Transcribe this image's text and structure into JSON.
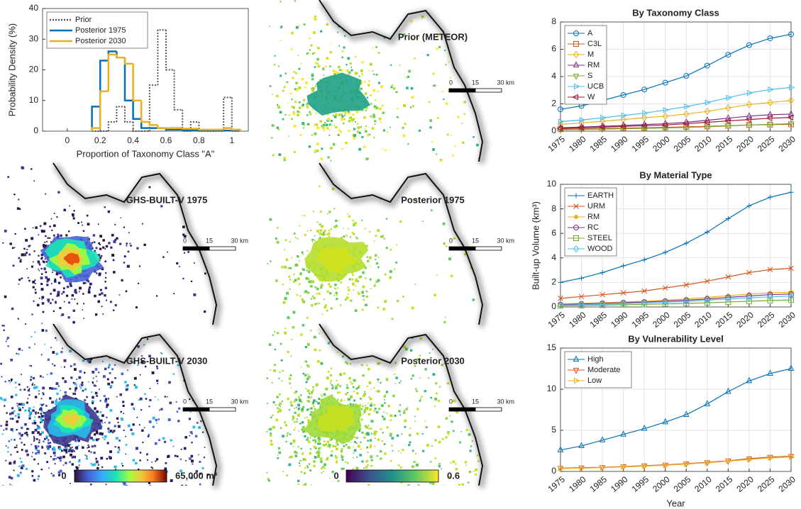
{
  "chart_data": [
    {
      "type": "histogram",
      "xlabel": "Proportion of Taxonomy Class \"A\"",
      "ylabel": "Probability Density (%)",
      "bins": [
        0.15,
        0.2,
        0.25,
        0.3,
        0.35,
        0.4,
        0.45,
        0.5,
        0.55,
        0.6,
        0.65,
        0.7,
        0.75,
        0.8,
        0.85,
        0.9,
        0.95,
        1.0,
        1.05
      ],
      "series": [
        {
          "name": "Prior",
          "color": "#555555",
          "linestyle": "dotted",
          "values": [
            0,
            0,
            3,
            8,
            3,
            0,
            0,
            15,
            33,
            20,
            7,
            0,
            3,
            0,
            0,
            0,
            11,
            0
          ]
        },
        {
          "name": "Posterior 1975",
          "color": "#0072bd",
          "linestyle": "solid",
          "values": [
            8,
            23,
            26,
            24,
            10,
            4,
            1,
            1,
            1,
            0.5,
            0.5,
            0.3,
            0.3,
            0.3,
            0.2,
            0.2,
            0.2,
            0.2
          ]
        },
        {
          "name": "Posterior 2030",
          "color": "#edb120",
          "linestyle": "solid",
          "values": [
            1,
            13,
            25,
            24,
            22,
            10,
            3,
            2,
            1,
            1,
            1,
            0.8,
            0.8,
            0.5,
            0.5,
            0.5,
            1,
            0.5
          ]
        }
      ],
      "xlim": [
        -0.15,
        1.1
      ],
      "xticks": [
        0,
        0.2,
        0.4,
        0.6,
        0.8,
        1
      ],
      "ylim": [
        0,
        40
      ],
      "yticks": [
        0,
        10,
        20,
        30,
        40
      ],
      "grid": false,
      "legend": "northwest"
    },
    {
      "type": "line",
      "title": "By Taxonomy Class",
      "x": [
        1975,
        1980,
        1985,
        1990,
        1995,
        2000,
        2005,
        2010,
        2015,
        2020,
        2025,
        2030
      ],
      "series": [
        {
          "name": "A",
          "color": "#0072bd",
          "marker": "circle",
          "values": [
            1.6,
            1.85,
            2.25,
            2.65,
            3.05,
            3.55,
            4.05,
            4.8,
            5.6,
            6.3,
            6.8,
            7.1
          ]
        },
        {
          "name": "C3L",
          "color": "#d95319",
          "marker": "square",
          "values": [
            0.15,
            0.17,
            0.2,
            0.22,
            0.25,
            0.28,
            0.31,
            0.35,
            0.4,
            0.45,
            0.48,
            0.5
          ]
        },
        {
          "name": "M",
          "color": "#edb120",
          "marker": "diamond",
          "values": [
            0.5,
            0.6,
            0.72,
            0.85,
            0.98,
            1.1,
            1.25,
            1.45,
            1.7,
            1.95,
            2.1,
            2.25
          ]
        },
        {
          "name": "RM",
          "color": "#7e2f8e",
          "marker": "triangle-up",
          "values": [
            0.25,
            0.3,
            0.36,
            0.42,
            0.48,
            0.55,
            0.65,
            0.8,
            0.95,
            1.1,
            1.2,
            1.25
          ]
        },
        {
          "name": "S",
          "color": "#77ac30",
          "marker": "triangle-down",
          "values": [
            0.1,
            0.12,
            0.15,
            0.18,
            0.2,
            0.23,
            0.27,
            0.32,
            0.38,
            0.45,
            0.5,
            0.55
          ]
        },
        {
          "name": "UCB",
          "color": "#4dbeee",
          "marker": "triangle-right",
          "values": [
            0.7,
            0.82,
            0.98,
            1.15,
            1.32,
            1.55,
            1.8,
            2.1,
            2.45,
            2.8,
            3.05,
            3.2
          ]
        },
        {
          "name": "W",
          "color": "#a2142f",
          "marker": "triangle-left",
          "values": [
            0.2,
            0.25,
            0.3,
            0.35,
            0.4,
            0.45,
            0.55,
            0.65,
            0.75,
            0.85,
            0.95,
            1.0
          ]
        }
      ],
      "xlim": [
        1975,
        2030
      ],
      "xticks": [
        1975,
        1980,
        1985,
        1990,
        1995,
        2000,
        2005,
        2010,
        2015,
        2020,
        2025,
        2030
      ],
      "ylim": [
        0,
        8
      ],
      "yticks": [
        0,
        2,
        4,
        6,
        8
      ],
      "grid": true,
      "legend": "northwest"
    },
    {
      "type": "line",
      "title": "By Material Type",
      "ylabel": "Built-up Volume (km³)",
      "x": [
        1975,
        1980,
        1985,
        1990,
        1995,
        2000,
        2005,
        2010,
        2015,
        2020,
        2025,
        2030
      ],
      "series": [
        {
          "name": "EARTH",
          "color": "#0072bd",
          "marker": "plus",
          "values": [
            2.0,
            2.35,
            2.8,
            3.35,
            3.85,
            4.45,
            5.2,
            6.1,
            7.2,
            8.25,
            8.95,
            9.35
          ]
        },
        {
          "name": "URM",
          "color": "#d95319",
          "marker": "cross",
          "values": [
            0.7,
            0.85,
            1.0,
            1.15,
            1.3,
            1.55,
            1.8,
            2.1,
            2.45,
            2.8,
            3.05,
            3.15
          ]
        },
        {
          "name": "RM",
          "color": "#edb120",
          "marker": "dot",
          "values": [
            0.25,
            0.3,
            0.35,
            0.4,
            0.47,
            0.55,
            0.65,
            0.78,
            0.92,
            1.05,
            1.15,
            1.2
          ]
        },
        {
          "name": "RC",
          "color": "#7e2f8e",
          "marker": "circle",
          "values": [
            0.2,
            0.25,
            0.3,
            0.35,
            0.4,
            0.47,
            0.55,
            0.65,
            0.78,
            0.9,
            1.0,
            1.05
          ]
        },
        {
          "name": "STEEL",
          "color": "#77ac30",
          "marker": "square",
          "values": [
            0.1,
            0.12,
            0.15,
            0.18,
            0.21,
            0.25,
            0.29,
            0.34,
            0.4,
            0.47,
            0.52,
            0.57
          ]
        },
        {
          "name": "WOOD",
          "color": "#4dbeee",
          "marker": "diamond",
          "values": [
            0.15,
            0.18,
            0.22,
            0.27,
            0.32,
            0.38,
            0.45,
            0.55,
            0.65,
            0.75,
            0.82,
            0.88
          ]
        }
      ],
      "xlim": [
        1975,
        2030
      ],
      "xticks": [
        1975,
        1980,
        1985,
        1990,
        1995,
        2000,
        2005,
        2010,
        2015,
        2020,
        2025,
        2030
      ],
      "ylim": [
        0,
        10
      ],
      "yticks": [
        0,
        2,
        4,
        6,
        8,
        10
      ],
      "grid": true,
      "legend": "northwest"
    },
    {
      "type": "line",
      "title": "By Vulnerability Level",
      "xlabel": "Year",
      "x": [
        1975,
        1980,
        1985,
        1990,
        1995,
        2000,
        2005,
        2010,
        2015,
        2020,
        2025,
        2030
      ],
      "series": [
        {
          "name": "High",
          "color": "#0072bd",
          "marker": "triangle-up",
          "values": [
            2.6,
            3.1,
            3.8,
            4.5,
            5.2,
            6.0,
            6.9,
            8.2,
            9.7,
            11.0,
            11.9,
            12.5
          ]
        },
        {
          "name": "Moderate",
          "color": "#d95319",
          "marker": "triangle-down",
          "values": [
            0.4,
            0.45,
            0.5,
            0.6,
            0.7,
            0.8,
            0.95,
            1.1,
            1.3,
            1.55,
            1.75,
            1.85
          ]
        },
        {
          "name": "Low",
          "color": "#edb120",
          "marker": "triangle-right",
          "values": [
            0.35,
            0.4,
            0.47,
            0.55,
            0.65,
            0.75,
            0.9,
            1.05,
            1.25,
            1.45,
            1.65,
            1.75
          ]
        }
      ],
      "xlim": [
        1975,
        2030
      ],
      "xticks": [
        1975,
        1980,
        1985,
        1990,
        1995,
        2000,
        2005,
        2010,
        2015,
        2020,
        2025,
        2030
      ],
      "ylim": [
        0,
        15
      ],
      "yticks": [
        0,
        5,
        10,
        15
      ],
      "grid": true,
      "legend": "northwest"
    }
  ],
  "maps": [
    {
      "title": "Prior (METEOR)"
    },
    {
      "title": "GHS-BUILT-V 1975"
    },
    {
      "title": "Posterior 1975"
    },
    {
      "title": "GHS-BUILT-V 2030"
    },
    {
      "title": "Posterior 2030"
    }
  ],
  "scale_bar": [
    "0",
    "15",
    "30 km"
  ],
  "colorbars": [
    {
      "min_label": "0",
      "max_label": "65,000 m³"
    },
    {
      "min_label": "0",
      "max_label": "0.6"
    }
  ]
}
